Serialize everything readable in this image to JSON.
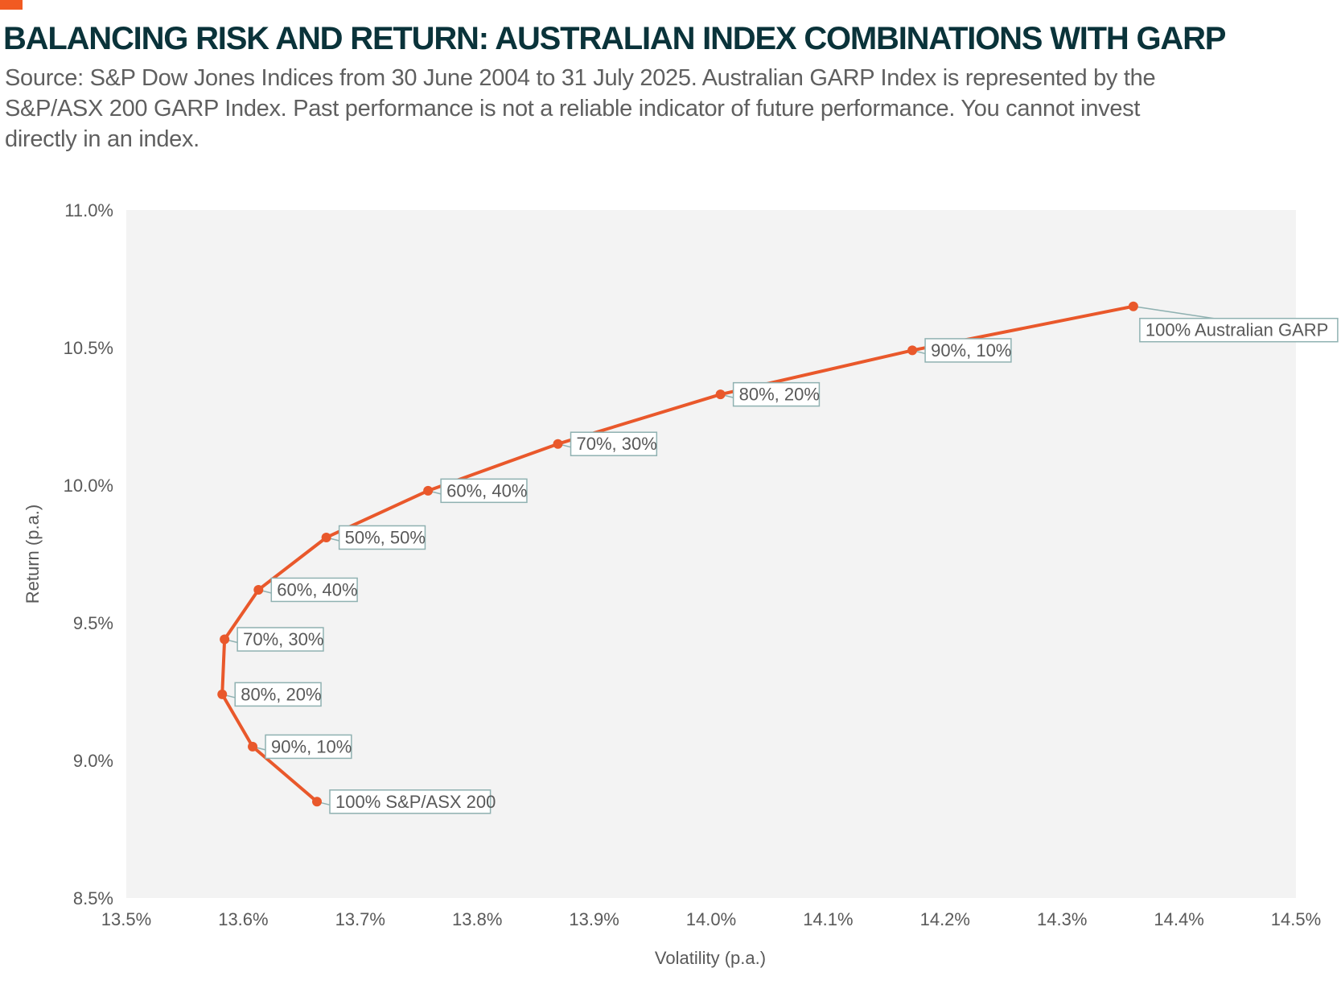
{
  "title": "BALANCING RISK AND RETURN: AUSTRALIAN INDEX COMBINATIONS WITH GARP",
  "subtitle_lines": [
    "Source: S&P Dow Jones Indices from 30 June 2004 to 31 July 2025. Australian GARP Index is represented by the",
    "S&P/ASX 200 GARP Index. Past performance is not a reliable indicator of future performance. You cannot invest",
    "directly in an index."
  ],
  "colors": {
    "line": "#e9582b",
    "plot_bg": "#f3f3f3",
    "label_border": "#8fb1b1",
    "text": "#595959",
    "title": "#0a333a"
  },
  "chart_data": {
    "type": "line",
    "xlabel": "Volatility (p.a.)",
    "ylabel": "Return (p.a.)",
    "xlim": [
      13.5,
      14.5
    ],
    "ylim": [
      8.5,
      11.0
    ],
    "x_ticks": [
      "13.5%",
      "13.6%",
      "13.7%",
      "13.8%",
      "13.9%",
      "14.0%",
      "14.1%",
      "14.2%",
      "14.3%",
      "14.4%",
      "14.5%"
    ],
    "y_ticks": [
      "11.0%",
      "10.5%",
      "10.0%",
      "9.5%",
      "9.0%",
      "8.5%"
    ],
    "points": [
      {
        "label": "100% S&P/ASX 200",
        "x": 13.663,
        "y": 8.85
      },
      {
        "label": "90%, 10%",
        "x": 13.608,
        "y": 9.05
      },
      {
        "label": "80%, 20%",
        "x": 13.582,
        "y": 9.24
      },
      {
        "label": "70%, 30%",
        "x": 13.584,
        "y": 9.44
      },
      {
        "label": "60%, 40%",
        "x": 13.613,
        "y": 9.62
      },
      {
        "label": "50%, 50%",
        "x": 13.671,
        "y": 9.81
      },
      {
        "label": "60%, 40%",
        "x": 13.758,
        "y": 9.98
      },
      {
        "label": "70%, 30%",
        "x": 13.869,
        "y": 10.15
      },
      {
        "label": "80%, 20%",
        "x": 14.008,
        "y": 10.33
      },
      {
        "label": "90%, 10%",
        "x": 14.172,
        "y": 10.49
      },
      {
        "label": "100% Australian GARP",
        "x": 14.361,
        "y": 10.65
      }
    ]
  }
}
